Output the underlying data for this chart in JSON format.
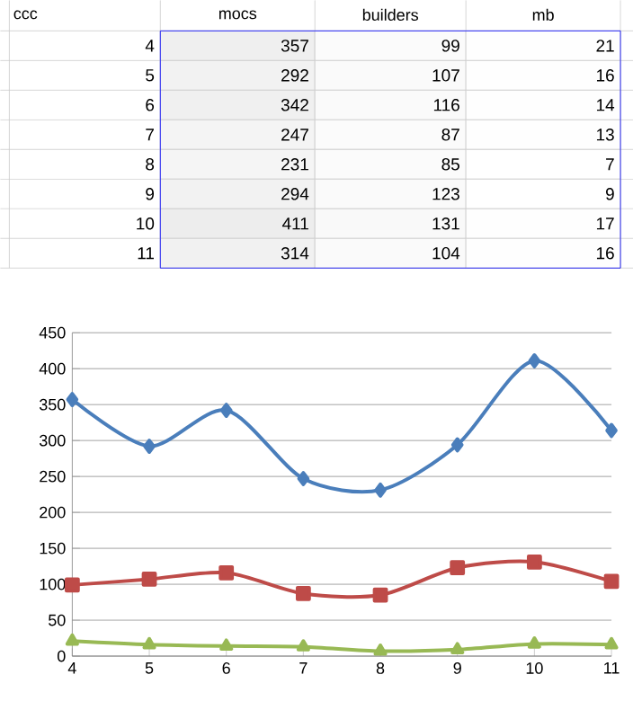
{
  "chart_data": [
    {
      "type": "heatmap",
      "ylabel": "ccc",
      "categories": [
        "mocs",
        "builders",
        "mb"
      ],
      "y_categories": [
        "4",
        "5",
        "6",
        "7",
        "8",
        "9",
        "10",
        "11"
      ],
      "cells": [
        [
          357,
          99,
          21
        ],
        [
          292,
          107,
          16
        ],
        [
          342,
          116,
          14
        ],
        [
          247,
          87,
          13
        ],
        [
          231,
          85,
          7
        ],
        [
          294,
          123,
          9
        ],
        [
          411,
          131,
          17
        ],
        [
          314,
          104,
          16
        ]
      ],
      "cell_labels": [
        [
          "357",
          "99",
          "21"
        ],
        [
          "292",
          "107",
          "16"
        ],
        [
          "342",
          "116",
          "14"
        ],
        [
          "247",
          "87",
          "13"
        ],
        [
          "231",
          "85",
          "7"
        ],
        [
          "294",
          "123",
          "9"
        ],
        [
          "411",
          "131",
          "17"
        ],
        [
          "314",
          "104",
          "16"
        ]
      ]
    },
    {
      "type": "line",
      "categories": [
        "4",
        "5",
        "6",
        "7",
        "8",
        "9",
        "10",
        "11"
      ],
      "series": [
        {
          "color": "#4a7ebb",
          "marker": "diamond",
          "values": [
            357,
            292,
            342,
            247,
            231,
            294,
            411,
            314
          ]
        },
        {
          "color": "#be4b48",
          "marker": "square",
          "values": [
            99,
            107,
            116,
            87,
            85,
            123,
            131,
            104
          ]
        },
        {
          "color": "#98b954",
          "marker": "triangle",
          "values": [
            21,
            16,
            14,
            13,
            7,
            9,
            17,
            16
          ]
        }
      ],
      "ylim": [
        0,
        450
      ],
      "yticks": [
        0,
        50,
        100,
        150,
        200,
        250,
        300,
        350,
        400,
        450
      ],
      "grid": "y"
    }
  ]
}
